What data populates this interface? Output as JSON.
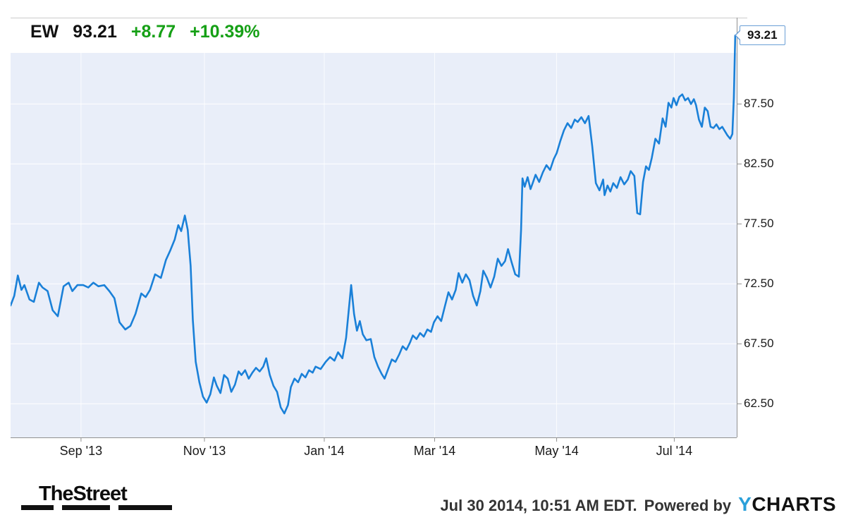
{
  "header": {
    "symbol": "EW",
    "price": "93.21",
    "change": "+8.77",
    "change_pct": "+10.39%",
    "change_color": "#16a016"
  },
  "chart_data": {
    "type": "line",
    "title": "",
    "xlabel": "",
    "ylabel": "",
    "x_unit": "fraction-of-axis (early Aug 2013 to Jul 30 2014)",
    "ylim": [
      59.7,
      94.7
    ],
    "grid": true,
    "plot_bg": "#e9eef9",
    "grid_color": "#ffffff",
    "axis_color": "#909090",
    "top_border_color": "#cccccc",
    "flag_border_color": "#6b9fd6",
    "last_value_label": "93.21",
    "last_value": 93.21,
    "y_ticks": [
      {
        "label": "87.50",
        "value": 87.5
      },
      {
        "label": "82.50",
        "value": 82.5
      },
      {
        "label": "77.50",
        "value": 77.5
      },
      {
        "label": "72.50",
        "value": 72.5
      },
      {
        "label": "67.50",
        "value": 67.5
      },
      {
        "label": "62.50",
        "value": 62.5
      }
    ],
    "x_ticks": [
      {
        "label": "Sep '13",
        "pos": 0.097
      },
      {
        "label": "Nov '13",
        "pos": 0.267
      },
      {
        "label": "Jan '14",
        "pos": 0.432
      },
      {
        "label": "Mar '14",
        "pos": 0.584
      },
      {
        "label": "May '14",
        "pos": 0.752
      },
      {
        "label": "Jul '14",
        "pos": 0.914
      }
    ],
    "series": [
      {
        "name": "EW price",
        "color": "#1a80d8",
        "points": [
          [
            0.0,
            70.7
          ],
          [
            0.005,
            71.5
          ],
          [
            0.01,
            73.2
          ],
          [
            0.015,
            72.0
          ],
          [
            0.019,
            72.4
          ],
          [
            0.026,
            71.2
          ],
          [
            0.032,
            71.0
          ],
          [
            0.039,
            72.6
          ],
          [
            0.044,
            72.2
          ],
          [
            0.051,
            71.9
          ],
          [
            0.058,
            70.3
          ],
          [
            0.065,
            69.8
          ],
          [
            0.073,
            72.3
          ],
          [
            0.08,
            72.6
          ],
          [
            0.085,
            71.9
          ],
          [
            0.092,
            72.4
          ],
          [
            0.1,
            72.4
          ],
          [
            0.107,
            72.2
          ],
          [
            0.114,
            72.6
          ],
          [
            0.121,
            72.3
          ],
          [
            0.129,
            72.4
          ],
          [
            0.136,
            71.9
          ],
          [
            0.143,
            71.3
          ],
          [
            0.15,
            69.3
          ],
          [
            0.158,
            68.7
          ],
          [
            0.165,
            69.0
          ],
          [
            0.172,
            70.0
          ],
          [
            0.18,
            71.7
          ],
          [
            0.186,
            71.4
          ],
          [
            0.192,
            72.0
          ],
          [
            0.199,
            73.3
          ],
          [
            0.207,
            73.0
          ],
          [
            0.214,
            74.5
          ],
          [
            0.22,
            75.3
          ],
          [
            0.226,
            76.2
          ],
          [
            0.231,
            77.4
          ],
          [
            0.235,
            76.9
          ],
          [
            0.24,
            78.2
          ],
          [
            0.244,
            77.0
          ],
          [
            0.248,
            74.0
          ],
          [
            0.251,
            69.5
          ],
          [
            0.255,
            66.0
          ],
          [
            0.26,
            64.3
          ],
          [
            0.265,
            63.1
          ],
          [
            0.27,
            62.6
          ],
          [
            0.275,
            63.3
          ],
          [
            0.28,
            64.7
          ],
          [
            0.284,
            64.0
          ],
          [
            0.289,
            63.4
          ],
          [
            0.294,
            64.9
          ],
          [
            0.299,
            64.6
          ],
          [
            0.304,
            63.5
          ],
          [
            0.309,
            64.1
          ],
          [
            0.314,
            65.2
          ],
          [
            0.318,
            64.9
          ],
          [
            0.323,
            65.3
          ],
          [
            0.328,
            64.6
          ],
          [
            0.333,
            65.1
          ],
          [
            0.338,
            65.5
          ],
          [
            0.343,
            65.2
          ],
          [
            0.348,
            65.6
          ],
          [
            0.352,
            66.3
          ],
          [
            0.357,
            64.9
          ],
          [
            0.362,
            64.0
          ],
          [
            0.367,
            63.5
          ],
          [
            0.372,
            62.2
          ],
          [
            0.377,
            61.7
          ],
          [
            0.382,
            62.4
          ],
          [
            0.386,
            63.9
          ],
          [
            0.391,
            64.6
          ],
          [
            0.396,
            64.3
          ],
          [
            0.401,
            65.0
          ],
          [
            0.406,
            64.7
          ],
          [
            0.411,
            65.3
          ],
          [
            0.416,
            65.1
          ],
          [
            0.42,
            65.6
          ],
          [
            0.427,
            65.4
          ],
          [
            0.434,
            66.0
          ],
          [
            0.44,
            66.4
          ],
          [
            0.446,
            66.1
          ],
          [
            0.451,
            66.8
          ],
          [
            0.457,
            66.3
          ],
          [
            0.462,
            68.0
          ],
          [
            0.466,
            70.5
          ],
          [
            0.469,
            72.4
          ],
          [
            0.473,
            70.0
          ],
          [
            0.477,
            68.6
          ],
          [
            0.481,
            69.4
          ],
          [
            0.485,
            68.3
          ],
          [
            0.49,
            67.8
          ],
          [
            0.496,
            67.9
          ],
          [
            0.501,
            66.4
          ],
          [
            0.506,
            65.6
          ],
          [
            0.511,
            65.0
          ],
          [
            0.515,
            64.6
          ],
          [
            0.52,
            65.4
          ],
          [
            0.525,
            66.2
          ],
          [
            0.53,
            66.0
          ],
          [
            0.535,
            66.6
          ],
          [
            0.54,
            67.3
          ],
          [
            0.545,
            67.0
          ],
          [
            0.55,
            67.6
          ],
          [
            0.554,
            68.2
          ],
          [
            0.559,
            67.9
          ],
          [
            0.564,
            68.4
          ],
          [
            0.569,
            68.1
          ],
          [
            0.574,
            68.7
          ],
          [
            0.579,
            68.5
          ],
          [
            0.583,
            69.3
          ],
          [
            0.588,
            69.8
          ],
          [
            0.593,
            69.4
          ],
          [
            0.598,
            70.6
          ],
          [
            0.603,
            71.8
          ],
          [
            0.608,
            71.2
          ],
          [
            0.613,
            72.0
          ],
          [
            0.617,
            73.4
          ],
          [
            0.622,
            72.6
          ],
          [
            0.627,
            73.3
          ],
          [
            0.632,
            72.8
          ],
          [
            0.637,
            71.5
          ],
          [
            0.642,
            70.7
          ],
          [
            0.647,
            71.9
          ],
          [
            0.651,
            73.6
          ],
          [
            0.656,
            73.0
          ],
          [
            0.661,
            72.2
          ],
          [
            0.666,
            73.1
          ],
          [
            0.671,
            74.6
          ],
          [
            0.676,
            74.0
          ],
          [
            0.681,
            74.4
          ],
          [
            0.685,
            75.4
          ],
          [
            0.69,
            74.3
          ],
          [
            0.695,
            73.3
          ],
          [
            0.7,
            73.1
          ],
          [
            0.703,
            77.0
          ],
          [
            0.705,
            81.3
          ],
          [
            0.708,
            80.6
          ],
          [
            0.712,
            81.4
          ],
          [
            0.716,
            80.4
          ],
          [
            0.719,
            80.9
          ],
          [
            0.723,
            81.6
          ],
          [
            0.728,
            81.0
          ],
          [
            0.733,
            81.8
          ],
          [
            0.738,
            82.4
          ],
          [
            0.743,
            82.0
          ],
          [
            0.748,
            82.9
          ],
          [
            0.752,
            83.4
          ],
          [
            0.757,
            84.4
          ],
          [
            0.762,
            85.3
          ],
          [
            0.767,
            85.9
          ],
          [
            0.772,
            85.5
          ],
          [
            0.777,
            86.2
          ],
          [
            0.781,
            86.0
          ],
          [
            0.786,
            86.4
          ],
          [
            0.791,
            85.9
          ],
          [
            0.796,
            86.5
          ],
          [
            0.801,
            84.0
          ],
          [
            0.806,
            80.9
          ],
          [
            0.811,
            80.3
          ],
          [
            0.816,
            81.2
          ],
          [
            0.818,
            79.9
          ],
          [
            0.822,
            80.7
          ],
          [
            0.826,
            80.2
          ],
          [
            0.83,
            80.9
          ],
          [
            0.835,
            80.5
          ],
          [
            0.84,
            81.4
          ],
          [
            0.845,
            80.8
          ],
          [
            0.85,
            81.2
          ],
          [
            0.854,
            81.9
          ],
          [
            0.859,
            81.5
          ],
          [
            0.863,
            78.4
          ],
          [
            0.867,
            78.3
          ],
          [
            0.871,
            81.0
          ],
          [
            0.875,
            82.3
          ],
          [
            0.879,
            82.0
          ],
          [
            0.883,
            83.0
          ],
          [
            0.888,
            84.6
          ],
          [
            0.893,
            84.2
          ],
          [
            0.898,
            86.3
          ],
          [
            0.902,
            85.6
          ],
          [
            0.906,
            87.6
          ],
          [
            0.91,
            87.2
          ],
          [
            0.913,
            88.0
          ],
          [
            0.917,
            87.4
          ],
          [
            0.921,
            88.1
          ],
          [
            0.925,
            88.3
          ],
          [
            0.929,
            87.8
          ],
          [
            0.933,
            88.0
          ],
          [
            0.937,
            87.5
          ],
          [
            0.941,
            87.9
          ],
          [
            0.944,
            87.4
          ],
          [
            0.948,
            86.2
          ],
          [
            0.952,
            85.6
          ],
          [
            0.956,
            87.2
          ],
          [
            0.96,
            86.9
          ],
          [
            0.964,
            85.6
          ],
          [
            0.968,
            85.5
          ],
          [
            0.972,
            85.8
          ],
          [
            0.976,
            85.4
          ],
          [
            0.98,
            85.6
          ],
          [
            0.983,
            85.3
          ],
          [
            0.987,
            84.9
          ],
          [
            0.991,
            84.6
          ],
          [
            0.994,
            85.0
          ],
          [
            0.996,
            88.0
          ],
          [
            0.998,
            93.21
          ]
        ]
      }
    ]
  },
  "footer": {
    "brand": "TheStreet",
    "timestamp": "Jul 30 2014, 10:51 AM EDT.",
    "powered_by": "Powered by",
    "ycharts": {
      "prefix": "Y",
      "rest": "CHARTS",
      "y_color": "#2aa0da"
    }
  }
}
